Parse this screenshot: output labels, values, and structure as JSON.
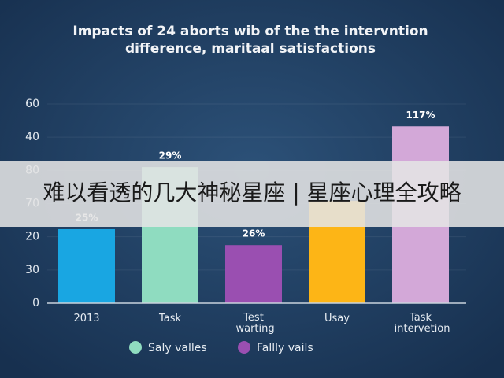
{
  "chart_data": {
    "type": "bar",
    "title": [
      "Impacts of 24 aborts wib of the the intervntion",
      "difference, maritaal satisfactions"
    ],
    "categories": [
      "2013",
      "Task",
      "Test warting",
      "Usay",
      "Task intervetion"
    ],
    "values": [
      22.3,
      41,
      17.5,
      30.8,
      53.3
    ],
    "colors": [
      "#19a6e2",
      "#8fdcc0",
      "#9a4fb1",
      "#fdb516",
      "#d3a8d8"
    ],
    "annotations": [
      "25%",
      "29%",
      "26%",
      null,
      "117%"
    ],
    "ylim": [
      0,
      60
    ],
    "yticks": [
      0,
      {
        "value": 10,
        "label": "30"
      },
      20,
      {
        "value": 30,
        "label": "70"
      },
      {
        "value": 40,
        "label": "80"
      },
      {
        "value": 50,
        "label": "40"
      },
      {
        "value": 60,
        "label": "60"
      }
    ],
    "grid": true,
    "legend": [
      {
        "name": "Saly valles",
        "color": "#8fdcc0"
      },
      {
        "name": "Fallly vails",
        "color": "#9a4fb1"
      }
    ]
  },
  "banner": {
    "text": "难以看透的几大神秘星座 | 星座心理全攻略"
  }
}
